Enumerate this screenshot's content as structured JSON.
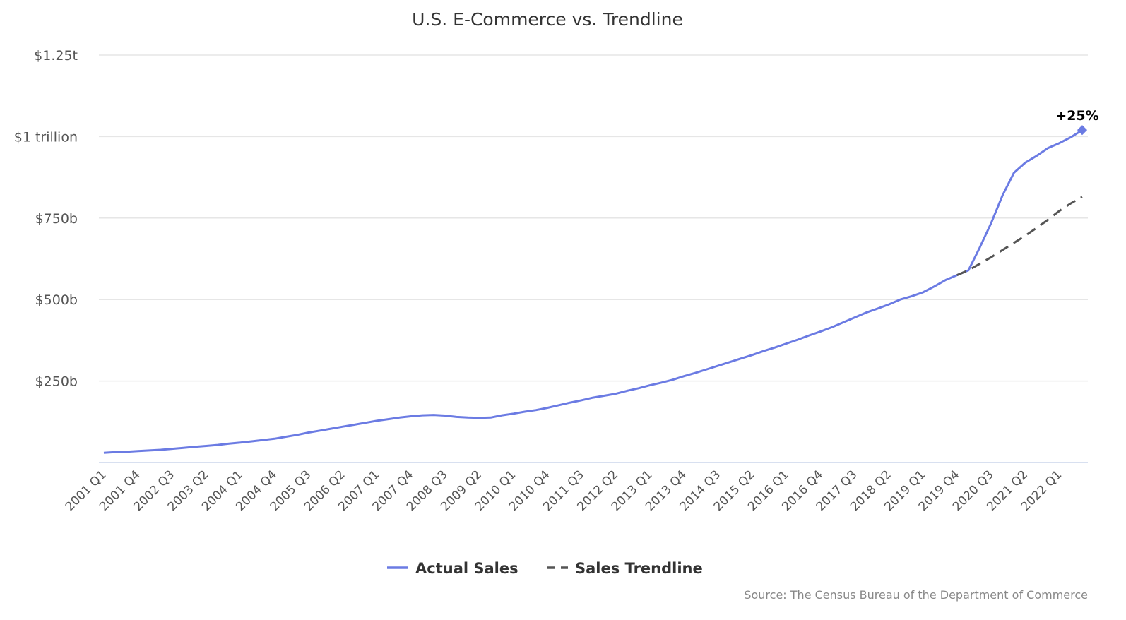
{
  "chart_data": {
    "type": "line",
    "title": "U.S. E-Commerce vs. Trendline",
    "xlabel": "",
    "ylabel": "",
    "ylim": [
      0,
      1250
    ],
    "y_ticks": [
      {
        "value": 250,
        "label": "$250b"
      },
      {
        "value": 500,
        "label": "$500b"
      },
      {
        "value": 750,
        "label": "$750b"
      },
      {
        "value": 1000,
        "label": "$1 trillion"
      },
      {
        "value": 1250,
        "label": "$1.25t"
      }
    ],
    "x_start_year": 2001,
    "x_label_every": 3,
    "grid": true,
    "legend_position": "bottom-center",
    "series": [
      {
        "name": "Actual Sales",
        "color": "#6b7be3",
        "style": "solid",
        "values": [
          30,
          32,
          33,
          35,
          37,
          39,
          42,
          45,
          48,
          51,
          54,
          58,
          61,
          65,
          69,
          73,
          79,
          85,
          92,
          98,
          104,
          110,
          116,
          122,
          128,
          133,
          138,
          142,
          145,
          146,
          144,
          140,
          138,
          137,
          138,
          145,
          150,
          156,
          161,
          168,
          176,
          184,
          191,
          199,
          205,
          211,
          220,
          228,
          237,
          245,
          254,
          265,
          275,
          286,
          297,
          308,
          319,
          330,
          342,
          353,
          365,
          377,
          390,
          402,
          415,
          430,
          445,
          460,
          472,
          485,
          500,
          510,
          522,
          540,
          560,
          575,
          590,
          660,
          735,
          820,
          889,
          920,
          941,
          965,
          980,
          998,
          1020
        ]
      },
      {
        "name": "Sales Trendline",
        "color": "#555555",
        "style": "dashed",
        "start_index": 75,
        "values": [
          575,
          590,
          610,
          630,
          652,
          674,
          696,
          720,
          745,
          772,
          795,
          815
        ]
      }
    ],
    "annotations": [
      {
        "index": 86,
        "series": "Actual Sales",
        "text": "+25%"
      }
    ],
    "source": "Source: The Census Bureau of the Department of Commerce"
  }
}
